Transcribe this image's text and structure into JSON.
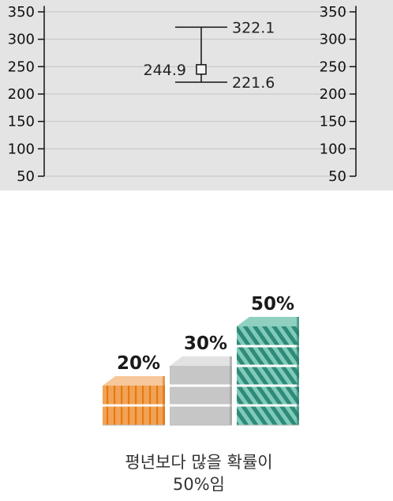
{
  "chart_data": [
    {
      "type": "error-bar",
      "y_ticks": [
        "350",
        "300",
        "250",
        "200",
        "150",
        "100",
        "50"
      ],
      "y_tick_values": [
        350,
        300,
        250,
        200,
        150,
        100,
        50
      ],
      "ylim": [
        50,
        355
      ],
      "grid": true,
      "series": [
        {
          "upper": 322.1,
          "median": 244.9,
          "lower": 221.6
        }
      ],
      "labels": {
        "upper": "322.1",
        "median": "244.9",
        "lower": "221.6"
      },
      "colors": {
        "background": "#e4e4e4",
        "grid": "#c4c4c4",
        "axis": "#111111"
      }
    },
    {
      "type": "bar",
      "categories": [
        "20%",
        "30%",
        "50%"
      ],
      "values": [
        20,
        30,
        50
      ],
      "caption": [
        "평년보다 많을 확률이",
        "50%임"
      ],
      "colors": [
        "#f0a153",
        "#c8c8c8",
        "#6fbfaf"
      ]
    }
  ]
}
